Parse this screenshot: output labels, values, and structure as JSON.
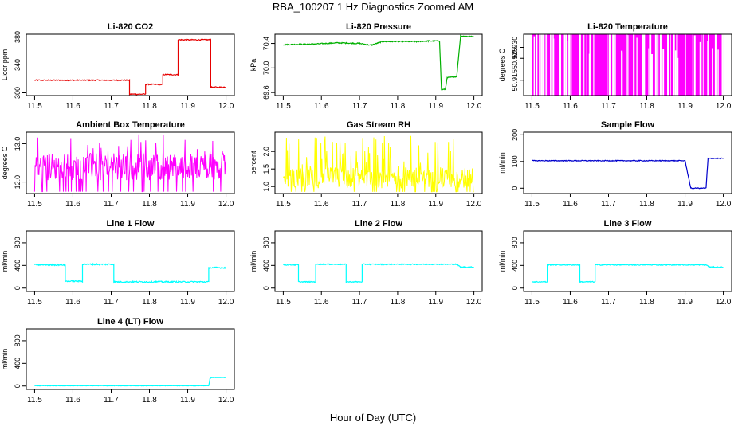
{
  "page_title": "RBA_100207  1 Hz Diagnostics Zoomed AM",
  "x_axis_title": "Hour of Day (UTC)",
  "chart_data": [
    {
      "type": "line",
      "title": "Li-820 CO2",
      "ylabel": "Licor ppm",
      "color": "#e60000",
      "xlim": [
        11.5,
        12.0
      ],
      "ylim": [
        296,
        384
      ],
      "yticks": [
        300,
        340,
        380
      ],
      "ytick_labels": [
        "300",
        "340",
        "380"
      ],
      "xticks": [
        11.5,
        11.6,
        11.7,
        11.8,
        11.9,
        12.0
      ],
      "xtick_labels": [
        "11.5",
        "11.6",
        "11.7",
        "11.8",
        "11.9",
        "12.0"
      ],
      "noise": 0.7,
      "points": [
        [
          11.5,
          318
        ],
        [
          11.748,
          318
        ],
        [
          11.748,
          298
        ],
        [
          11.79,
          298
        ],
        [
          11.79,
          312
        ],
        [
          11.835,
          312
        ],
        [
          11.835,
          326
        ],
        [
          11.875,
          326
        ],
        [
          11.875,
          376
        ],
        [
          11.96,
          376
        ],
        [
          11.96,
          308
        ],
        [
          12.0,
          308
        ]
      ]
    },
    {
      "type": "line",
      "title": "Li-820 Pressure",
      "ylabel": "kPa",
      "color": "#00b000",
      "xlim": [
        11.5,
        12.0
      ],
      "ylim": [
        69.55,
        70.55
      ],
      "yticks": [
        69.6,
        70.0,
        70.4
      ],
      "ytick_labels": [
        "69.6",
        "70.0",
        "70.4"
      ],
      "xticks": [
        11.5,
        11.6,
        11.7,
        11.8,
        11.9,
        12.0
      ],
      "xtick_labels": [
        "11.5",
        "11.6",
        "11.7",
        "11.8",
        "11.9",
        "12.0"
      ],
      "noise": 0.008,
      "points": [
        [
          11.5,
          70.38
        ],
        [
          11.58,
          70.39
        ],
        [
          11.64,
          70.41
        ],
        [
          11.7,
          70.4
        ],
        [
          11.73,
          70.37
        ],
        [
          11.76,
          70.43
        ],
        [
          11.85,
          70.43
        ],
        [
          11.88,
          70.44
        ],
        [
          11.91,
          70.44
        ],
        [
          11.915,
          69.65
        ],
        [
          11.925,
          69.65
        ],
        [
          11.93,
          69.84
        ],
        [
          11.955,
          69.86
        ],
        [
          11.965,
          70.52
        ],
        [
          12.0,
          70.51
        ]
      ]
    },
    {
      "type": "area",
      "title": "Li-820 Temperature",
      "ylabel": "degrees C",
      "color": "#ff00ff",
      "xlim": [
        11.5,
        12.0
      ],
      "ylim": [
        50.908,
        50.936
      ],
      "yticks": [
        50.915,
        50.925,
        50.93
      ],
      "ytick_labels": [
        "50.915",
        "50.925",
        "50.930"
      ],
      "xticks": [
        11.5,
        11.6,
        11.7,
        11.8,
        11.9,
        12.0
      ],
      "xtick_labels": [
        "11.5",
        "11.6",
        "11.7",
        "11.8",
        "11.9",
        "12.0"
      ],
      "band": [
        50.908,
        50.936
      ]
    },
    {
      "type": "line",
      "title": "Ambient Box Temperature",
      "ylabel": "degrees C",
      "color": "#ff00ff",
      "xlim": [
        11.5,
        12.0
      ],
      "ylim": [
        11.7,
        13.3
      ],
      "yticks": [
        12.0,
        13.0
      ],
      "ytick_labels": [
        "12.0",
        "13.0"
      ],
      "xticks": [
        11.5,
        11.6,
        11.7,
        11.8,
        11.9,
        12.0
      ],
      "xtick_labels": [
        "11.5",
        "11.6",
        "11.7",
        "11.8",
        "11.9",
        "12.0"
      ],
      "spiky": {
        "base": 12.05,
        "spread": 0.7,
        "spikes": 1.2,
        "floor": 11.75
      }
    },
    {
      "type": "line",
      "title": "Gas Stream RH",
      "ylabel": "percent",
      "color": "#ffff00",
      "xlim": [
        11.5,
        12.0
      ],
      "ylim": [
        0.8,
        2.55
      ],
      "yticks": [
        1.0,
        1.5,
        2.0
      ],
      "ytick_labels": [
        "1.0",
        "1.5",
        "2.0"
      ],
      "xticks": [
        11.5,
        11.6,
        11.7,
        11.8,
        11.9,
        12.0
      ],
      "xtick_labels": [
        "11.5",
        "11.6",
        "11.7",
        "11.8",
        "11.9",
        "12.0"
      ],
      "spiky": {
        "base": 0.95,
        "spread": 0.6,
        "spikes": 1.5,
        "floor": 0.85
      }
    },
    {
      "type": "line",
      "title": "Sample Flow",
      "ylabel": "ml/min",
      "color": "#0000cc",
      "xlim": [
        11.5,
        12.0
      ],
      "ylim": [
        -20,
        210
      ],
      "yticks": [
        0,
        100,
        200
      ],
      "ytick_labels": [
        "0",
        "100",
        "200"
      ],
      "xticks": [
        11.5,
        11.6,
        11.7,
        11.8,
        11.9,
        12.0
      ],
      "xtick_labels": [
        "11.5",
        "11.6",
        "11.7",
        "11.8",
        "11.9",
        "12.0"
      ],
      "noise": 1.5,
      "points": [
        [
          11.5,
          103
        ],
        [
          11.7,
          103
        ],
        [
          11.9,
          103
        ],
        [
          11.915,
          0
        ],
        [
          11.955,
          0
        ],
        [
          11.96,
          112
        ],
        [
          12.0,
          112
        ]
      ]
    },
    {
      "type": "line",
      "title": "Line 1 Flow",
      "ylabel": "ml/min",
      "color": "#00ffff",
      "xlim": [
        11.5,
        12.0
      ],
      "ylim": [
        -60,
        1010
      ],
      "yticks": [
        0,
        400,
        800
      ],
      "ytick_labels": [
        "0",
        "400",
        "800"
      ],
      "xticks": [
        11.5,
        11.6,
        11.7,
        11.8,
        11.9,
        12.0
      ],
      "xtick_labels": [
        "11.5",
        "11.6",
        "11.7",
        "11.8",
        "11.9",
        "12.0"
      ],
      "noise": 12,
      "points": [
        [
          11.5,
          410
        ],
        [
          11.58,
          410
        ],
        [
          11.58,
          120
        ],
        [
          11.625,
          120
        ],
        [
          11.625,
          420
        ],
        [
          11.707,
          420
        ],
        [
          11.707,
          110
        ],
        [
          11.955,
          110
        ],
        [
          11.955,
          360
        ],
        [
          12.0,
          360
        ]
      ]
    },
    {
      "type": "line",
      "title": "Line 2 Flow",
      "ylabel": "ml/min",
      "color": "#00ffff",
      "xlim": [
        11.5,
        12.0
      ],
      "ylim": [
        -60,
        1010
      ],
      "yticks": [
        0,
        400,
        800
      ],
      "ytick_labels": [
        "0",
        "400",
        "800"
      ],
      "xticks": [
        11.5,
        11.6,
        11.7,
        11.8,
        11.9,
        12.0
      ],
      "xtick_labels": [
        "11.5",
        "11.6",
        "11.7",
        "11.8",
        "11.9",
        "12.0"
      ],
      "noise": 8,
      "points": [
        [
          11.5,
          410
        ],
        [
          11.54,
          410
        ],
        [
          11.54,
          110
        ],
        [
          11.585,
          110
        ],
        [
          11.585,
          420
        ],
        [
          11.665,
          420
        ],
        [
          11.665,
          110
        ],
        [
          11.707,
          110
        ],
        [
          11.707,
          420
        ],
        [
          11.955,
          420
        ],
        [
          11.965,
          370
        ],
        [
          12.0,
          370
        ]
      ]
    },
    {
      "type": "line",
      "title": "Line 3 Flow",
      "ylabel": "ml/min",
      "color": "#00ffff",
      "xlim": [
        11.5,
        12.0
      ],
      "ylim": [
        -60,
        1010
      ],
      "yticks": [
        0,
        400,
        800
      ],
      "ytick_labels": [
        "0",
        "400",
        "800"
      ],
      "xticks": [
        11.5,
        11.6,
        11.7,
        11.8,
        11.9,
        12.0
      ],
      "xtick_labels": [
        "11.5",
        "11.6",
        "11.7",
        "11.8",
        "11.9",
        "12.0"
      ],
      "noise": 8,
      "points": [
        [
          11.5,
          110
        ],
        [
          11.54,
          110
        ],
        [
          11.54,
          410
        ],
        [
          11.625,
          410
        ],
        [
          11.625,
          110
        ],
        [
          11.665,
          110
        ],
        [
          11.665,
          410
        ],
        [
          11.955,
          410
        ],
        [
          11.965,
          370
        ],
        [
          12.0,
          370
        ]
      ]
    },
    {
      "type": "line",
      "title": "Line 4 (LT) Flow",
      "ylabel": "ml/min",
      "color": "#00ffff",
      "xlim": [
        11.5,
        12.0
      ],
      "ylim": [
        -60,
        1010
      ],
      "yticks": [
        0,
        400,
        800
      ],
      "ytick_labels": [
        "0",
        "400",
        "800"
      ],
      "xticks": [
        11.5,
        11.6,
        11.7,
        11.8,
        11.9,
        12.0
      ],
      "xtick_labels": [
        "11.5",
        "11.6",
        "11.7",
        "11.8",
        "11.9",
        "12.0"
      ],
      "noise": 3,
      "points": [
        [
          11.5,
          5
        ],
        [
          11.955,
          5
        ],
        [
          11.958,
          130
        ],
        [
          11.962,
          150
        ],
        [
          12.0,
          150
        ]
      ]
    }
  ]
}
